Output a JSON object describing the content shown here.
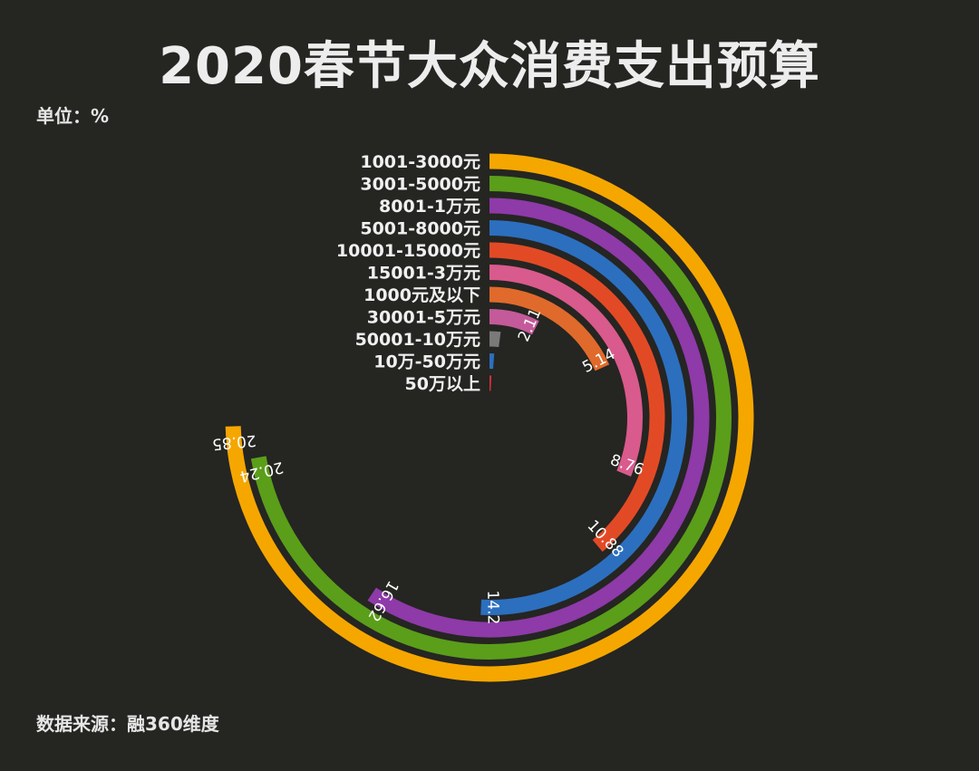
{
  "title": "2020春节大众消费支出预算",
  "unit": "单位：%",
  "source": "数据来源：融360维度",
  "chart_data": {
    "type": "radial-bar",
    "title": "2020春节大众消费支出预算",
    "unit": "%",
    "max": 28,
    "categories": [
      "1001-3000元",
      "3001-5000元",
      "8001-1万元",
      "5001-8000元",
      "10001-15000元",
      "15001-3万元",
      "1000元及以下",
      "30001-5万元",
      "50001-10万元",
      "10万-50万元",
      "50万以上"
    ],
    "values": [
      20.85,
      20.24,
      16.62,
      14.2,
      10.88,
      8.76,
      5.14,
      2.11,
      0.58,
      0.33,
      0.2
    ],
    "value_labels": [
      "20.85",
      "20.24",
      "16.62",
      "14.2",
      "10.88",
      "8.76",
      "5.14",
      "2.11",
      "",
      "",
      ""
    ],
    "colors": [
      "#f5a700",
      "#5b9e1a",
      "#8e3aa8",
      "#2c6fbf",
      "#e24a26",
      "#d95a8c",
      "#e06a2b",
      "#c45a9a",
      "#7a7a7a",
      "#2c6fbf",
      "#d8303a"
    ]
  }
}
